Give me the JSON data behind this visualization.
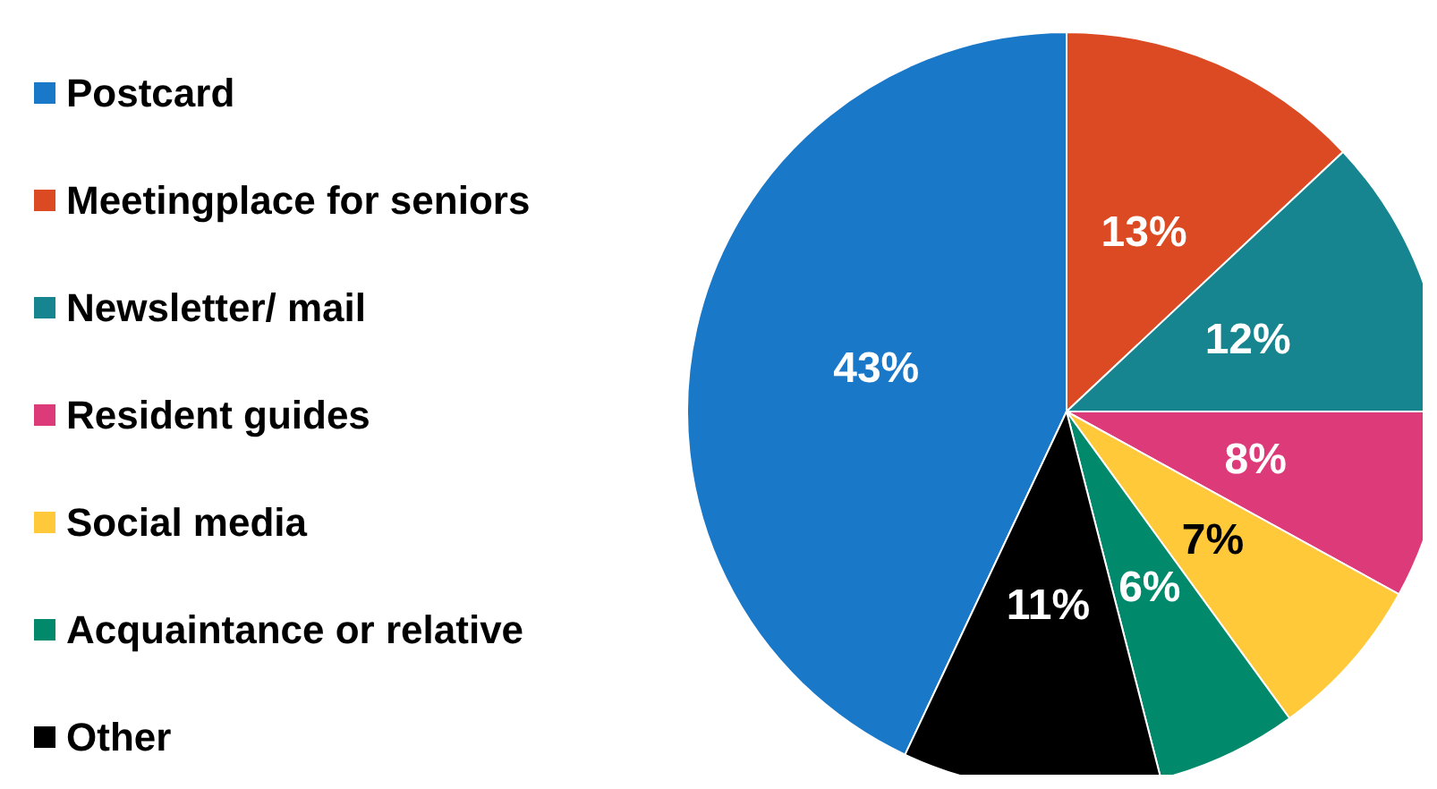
{
  "chart_data": {
    "type": "pie",
    "categories": [
      "Postcard",
      "Meetingplace for seniors",
      "Newsletter/ mail",
      "Resident guides",
      "Social media",
      "Acquaintance or relative",
      "Other"
    ],
    "values": [
      43,
      13,
      12,
      8,
      7,
      6,
      11
    ],
    "colors": [
      "#1a78c8",
      "#dc4a24",
      "#16858f",
      "#dc3a78",
      "#ffc93a",
      "#00896a",
      "#000000"
    ],
    "value_labels": [
      "43%",
      "13%",
      "12%",
      "8%",
      "7%",
      "6%",
      "11%"
    ],
    "legend": "left"
  }
}
